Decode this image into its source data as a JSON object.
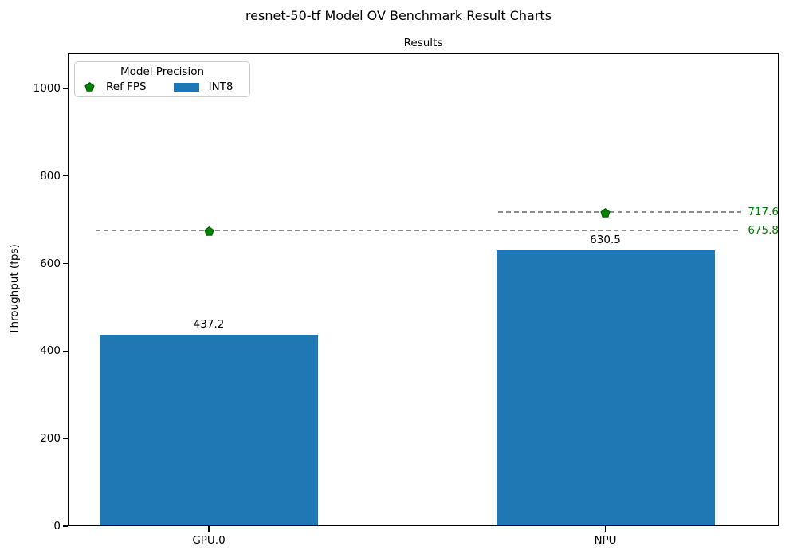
{
  "figure": {
    "title": "resnet-50-tf Model OV Benchmark Result Charts"
  },
  "chart_data": {
    "type": "bar",
    "title": "Results",
    "categories": [
      "GPU.0",
      "NPU"
    ],
    "series": [
      {
        "name": "INT8",
        "type": "bar",
        "values": [
          437.2,
          630.5
        ],
        "labels": [
          "437.2",
          "630.5"
        ],
        "color": "#1f77b4"
      },
      {
        "name": "Ref FPS",
        "type": "reference",
        "values": [
          675.8,
          717.6
        ],
        "labels": [
          "675.8",
          "717.6"
        ],
        "color": "#008000",
        "marker": "pentagon",
        "line_color": "#8c8c8c",
        "line_style": "dashed"
      }
    ],
    "xlabel": "",
    "ylabel": "Throughput (fps)",
    "yticks": [
      "0",
      "200",
      "400",
      "600",
      "800",
      "1000"
    ],
    "ylim": [
      0,
      1080
    ],
    "grid": false,
    "legend": {
      "title": "Model Precision",
      "position": "upper left",
      "entries": [
        {
          "label": "Ref FPS",
          "marker": "pentagon",
          "color": "#008000"
        },
        {
          "label": "INT8",
          "marker": "square",
          "color": "#1f77b4"
        }
      ]
    }
  }
}
